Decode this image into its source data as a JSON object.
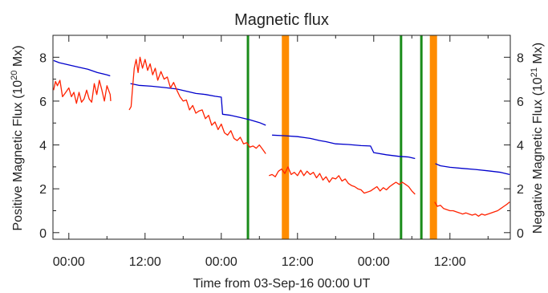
{
  "chart_data": {
    "type": "line",
    "title": "Magnetic flux",
    "xlabel": "Time from 03-Sep-16 00:00 UT",
    "ylabel_left": {
      "text": "Positive Magnetic Flux (10",
      "sup": "20",
      "unit": " Mx)"
    },
    "ylabel_right": {
      "text": "Negative Magnetic Flux (10",
      "sup": "21",
      "unit": " Mx)"
    },
    "x_unit": "hours from 03-Sep-16 00:00 UT",
    "xlim": [
      -2.5,
      69.5
    ],
    "x_ticks": [
      {
        "x": 0,
        "label": "00:00"
      },
      {
        "x": 12,
        "label": "12:00"
      },
      {
        "x": 24,
        "label": "00:00"
      },
      {
        "x": 36,
        "label": "12:00"
      },
      {
        "x": 48,
        "label": "00:00"
      },
      {
        "x": 60,
        "label": "12:00"
      }
    ],
    "ylim": [
      -0.3,
      9.0
    ],
    "y_ticks_left": [
      0,
      2,
      4,
      6,
      8
    ],
    "y_ticks_right": [
      0,
      2,
      4,
      6,
      8
    ],
    "series": [
      {
        "color": "#0000cc",
        "segments": [
          [
            [
              -2.4,
              7.85
            ],
            [
              -1.5,
              7.75
            ],
            [
              0,
              7.65
            ],
            [
              1.5,
              7.55
            ],
            [
              3,
              7.45
            ],
            [
              4.5,
              7.3
            ],
            [
              6,
              7.2
            ],
            [
              6.5,
              7.15
            ]
          ],
          [
            [
              9.7,
              6.8
            ],
            [
              11,
              6.72
            ],
            [
              13,
              6.68
            ],
            [
              15,
              6.62
            ],
            [
              17,
              6.55
            ],
            [
              18.5,
              6.45
            ],
            [
              20,
              6.35
            ],
            [
              21.5,
              6.3
            ],
            [
              23,
              6.22
            ],
            [
              24,
              6.18
            ],
            [
              24.2,
              5.4
            ],
            [
              25.5,
              5.35
            ],
            [
              27,
              5.25
            ],
            [
              28.5,
              5.15
            ],
            [
              30,
              5.02
            ],
            [
              31,
              4.9
            ]
          ],
          [
            [
              32,
              4.45
            ],
            [
              34,
              4.42
            ],
            [
              36,
              4.38
            ],
            [
              38,
              4.3
            ],
            [
              39.5,
              4.2
            ],
            [
              40.5,
              4.15
            ],
            [
              42,
              4.05
            ],
            [
              44,
              4.02
            ],
            [
              46,
              3.97
            ],
            [
              47.5,
              3.95
            ],
            [
              48,
              3.65
            ],
            [
              50,
              3.55
            ],
            [
              52,
              3.48
            ],
            [
              53.5,
              3.45
            ],
            [
              54.5,
              3.38
            ]
          ],
          [
            [
              57.7,
              3.15
            ],
            [
              58.5,
              3.05
            ],
            [
              60,
              2.98
            ],
            [
              62,
              2.93
            ],
            [
              64,
              2.88
            ],
            [
              66,
              2.82
            ],
            [
              68,
              2.75
            ],
            [
              69.4,
              2.65
            ]
          ]
        ]
      },
      {
        "color": "#ff2200",
        "segments": [
          [
            [
              -2.4,
              6.5
            ],
            [
              -2.1,
              6.9
            ],
            [
              -1.8,
              6.7
            ],
            [
              -1.4,
              6.95
            ],
            [
              -1,
              6.2
            ],
            [
              -0.6,
              6.35
            ],
            [
              0,
              6.6
            ],
            [
              0.4,
              6.2
            ],
            [
              0.8,
              6.4
            ],
            [
              1.2,
              5.9
            ],
            [
              1.6,
              6.4
            ],
            [
              2,
              5.95
            ],
            [
              2.4,
              6.1
            ],
            [
              2.8,
              6.5
            ],
            [
              3.2,
              6.1
            ],
            [
              3.6,
              5.95
            ],
            [
              4,
              6.8
            ],
            [
              4.4,
              6.3
            ],
            [
              4.8,
              6.95
            ],
            [
              5.2,
              6.5
            ],
            [
              5.6,
              6.0
            ],
            [
              6.0,
              6.7
            ],
            [
              6.5,
              6.3
            ],
            [
              6.6,
              6.0
            ]
          ],
          [
            [
              9.5,
              5.6
            ],
            [
              9.8,
              5.75
            ],
            [
              10,
              6.5
            ],
            [
              10.3,
              7.5
            ],
            [
              10.6,
              7.9
            ],
            [
              10.9,
              7.3
            ],
            [
              11.2,
              8.0
            ],
            [
              11.6,
              7.5
            ],
            [
              12,
              7.9
            ],
            [
              12.4,
              7.4
            ],
            [
              12.8,
              7.7
            ],
            [
              13.2,
              7.2
            ],
            [
              13.6,
              7.5
            ],
            [
              14,
              6.95
            ],
            [
              14.5,
              7.35
            ],
            [
              15,
              7.0
            ],
            [
              15.5,
              7.1
            ],
            [
              16,
              6.6
            ],
            [
              16.5,
              6.85
            ],
            [
              17,
              6.5
            ],
            [
              17.5,
              6.2
            ],
            [
              18,
              6.0
            ],
            [
              18.5,
              6.05
            ],
            [
              19,
              5.6
            ],
            [
              19.5,
              5.8
            ],
            [
              20,
              5.45
            ],
            [
              20.5,
              5.55
            ],
            [
              21,
              5.6
            ],
            [
              21.5,
              5.2
            ],
            [
              22,
              5.35
            ],
            [
              22.5,
              4.9
            ],
            [
              23,
              5.05
            ],
            [
              23.5,
              4.7
            ],
            [
              24,
              4.95
            ],
            [
              24.5,
              4.55
            ],
            [
              25,
              4.45
            ],
            [
              25.5,
              4.65
            ],
            [
              26,
              4.3
            ],
            [
              26.5,
              4.2
            ],
            [
              27,
              4.35
            ],
            [
              27.5,
              4.05
            ],
            [
              28,
              4.1
            ],
            [
              28.5,
              3.9
            ],
            [
              29,
              3.95
            ],
            [
              29.5,
              3.85
            ],
            [
              30,
              4.0
            ],
            [
              30.5,
              3.8
            ],
            [
              31,
              3.6
            ]
          ],
          [
            [
              31.5,
              2.6
            ],
            [
              32,
              2.65
            ],
            [
              32.5,
              2.55
            ],
            [
              33,
              2.8
            ],
            [
              33.5,
              2.9
            ],
            [
              34,
              2.7
            ],
            [
              34.5,
              3.0
            ],
            [
              35,
              2.65
            ],
            [
              35.5,
              2.75
            ],
            [
              36,
              2.6
            ],
            [
              36.5,
              2.85
            ],
            [
              37,
              2.6
            ],
            [
              37.5,
              2.8
            ],
            [
              38,
              2.65
            ],
            [
              38.5,
              2.75
            ],
            [
              39,
              2.5
            ],
            [
              39.5,
              2.7
            ],
            [
              40,
              2.4
            ],
            [
              40.5,
              2.55
            ],
            [
              41,
              2.3
            ],
            [
              41.5,
              2.5
            ],
            [
              42,
              2.45
            ],
            [
              42.5,
              2.6
            ],
            [
              43,
              2.35
            ],
            [
              43.5,
              2.45
            ],
            [
              44,
              2.25
            ],
            [
              44.5,
              2.15
            ],
            [
              45,
              2.1
            ],
            [
              45.5,
              2.0
            ],
            [
              46,
              1.95
            ],
            [
              46.5,
              1.8
            ],
            [
              47,
              1.85
            ],
            [
              47.5,
              1.9
            ],
            [
              48,
              2.0
            ],
            [
              48.5,
              2.1
            ],
            [
              49,
              1.9
            ],
            [
              49.5,
              2.05
            ],
            [
              50,
              1.95
            ],
            [
              50.5,
              2.1
            ],
            [
              51,
              2.2
            ],
            [
              51.5,
              2.3
            ],
            [
              52,
              2.2
            ],
            [
              52.5,
              2.3
            ],
            [
              53,
              2.2
            ],
            [
              53.5,
              2.1
            ],
            [
              54,
              1.9
            ],
            [
              54.5,
              1.75
            ]
          ],
          [
            [
              57.6,
              1.4
            ],
            [
              58,
              1.2
            ],
            [
              58.5,
              1.25
            ],
            [
              59,
              1.1
            ],
            [
              59.5,
              1.05
            ],
            [
              60,
              1.0
            ],
            [
              60.5,
              1.0
            ],
            [
              61,
              0.95
            ],
            [
              61.5,
              0.9
            ],
            [
              62,
              0.85
            ],
            [
              62.5,
              0.9
            ],
            [
              63,
              0.85
            ],
            [
              63.5,
              0.8
            ],
            [
              64,
              0.85
            ],
            [
              64.5,
              0.75
            ],
            [
              65,
              0.85
            ],
            [
              65.5,
              0.8
            ],
            [
              66,
              0.85
            ],
            [
              66.5,
              0.9
            ],
            [
              67,
              0.95
            ],
            [
              67.5,
              1.0
            ],
            [
              68,
              1.1
            ],
            [
              68.5,
              1.2
            ],
            [
              69,
              1.3
            ],
            [
              69.4,
              1.4
            ]
          ]
        ]
      }
    ],
    "markers": [
      {
        "x": 28.2,
        "color": "#1a8c1a",
        "style": "thin"
      },
      {
        "x": 34.1,
        "color": "#ff8c00",
        "style": "thick"
      },
      {
        "x": 52.3,
        "color": "#1a8c1a",
        "style": "thin"
      },
      {
        "x": 55.5,
        "color": "#1a8c1a",
        "style": "thin"
      },
      {
        "x": 57.4,
        "color": "#ff8c00",
        "style": "thick"
      }
    ]
  }
}
